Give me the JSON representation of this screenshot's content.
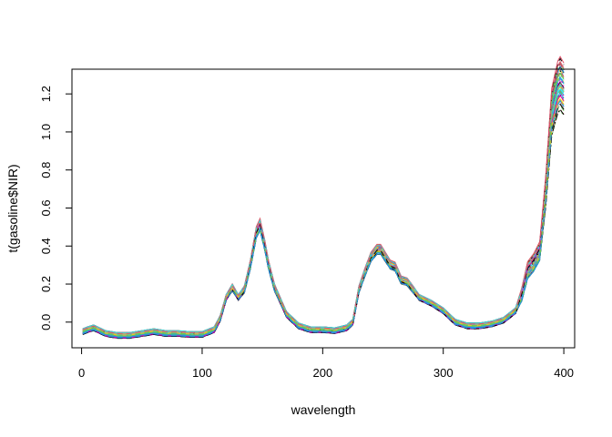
{
  "chart_data": {
    "type": "line",
    "title": "",
    "xlabel": "wavelength",
    "ylabel": "t(gasoline$NIR)",
    "xlim": [
      -8,
      409
    ],
    "ylim": [
      -0.135,
      1.33
    ],
    "xticks": [
      0,
      100,
      200,
      300,
      400
    ],
    "xtick_labels": [
      "0",
      "100",
      "200",
      "300",
      "400"
    ],
    "yticks": [
      0.0,
      0.2,
      0.4,
      0.6,
      0.8,
      1.0,
      1.2
    ],
    "ytick_labels": [
      "0.0",
      "0.2",
      "0.4",
      "0.6",
      "0.8",
      "1.0",
      "1.2"
    ],
    "grid": false,
    "legend": "none",
    "line_style": "dashed",
    "series_colors": [
      "#000000",
      "#DF536B",
      "#61D04F",
      "#2297E6",
      "#28E2E5",
      "#CD0BBC",
      "#F5C710",
      "#9E9E9E"
    ],
    "n_series": 60,
    "x": [
      1,
      5,
      10,
      20,
      30,
      40,
      50,
      60,
      70,
      80,
      90,
      100,
      110,
      115,
      120,
      125,
      130,
      135,
      140,
      145,
      148,
      152,
      155,
      160,
      170,
      180,
      190,
      200,
      210,
      220,
      225,
      230,
      235,
      240,
      245,
      248,
      252,
      256,
      260,
      265,
      270,
      275,
      280,
      290,
      300,
      310,
      320,
      330,
      340,
      350,
      360,
      365,
      370,
      375,
      380,
      385,
      390,
      395,
      397,
      400
    ],
    "mean_spectrum": [
      -0.05,
      -0.04,
      -0.03,
      -0.06,
      -0.07,
      -0.07,
      -0.06,
      -0.05,
      -0.06,
      -0.06,
      -0.065,
      -0.065,
      -0.04,
      0.02,
      0.13,
      0.18,
      0.13,
      0.17,
      0.3,
      0.47,
      0.51,
      0.4,
      0.3,
      0.18,
      0.04,
      -0.02,
      -0.04,
      -0.04,
      -0.045,
      -0.03,
      0.0,
      0.17,
      0.26,
      0.34,
      0.38,
      0.38,
      0.34,
      0.3,
      0.29,
      0.22,
      0.21,
      0.17,
      0.13,
      0.1,
      0.06,
      0.0,
      -0.02,
      -0.02,
      -0.01,
      0.01,
      0.06,
      0.14,
      0.27,
      0.31,
      0.37,
      0.68,
      1.1,
      1.23,
      1.25,
      1.22
    ]
  }
}
